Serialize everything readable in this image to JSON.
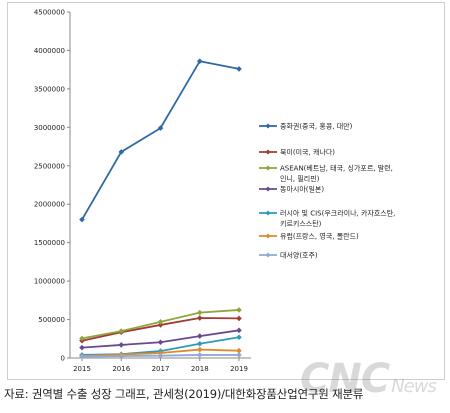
{
  "chart_data": {
    "type": "line",
    "x": [
      "2015",
      "2016",
      "2017",
      "2018",
      "2019"
    ],
    "ylim": [
      0,
      4500000
    ],
    "yticks": [
      "0",
      "500000",
      "1000000",
      "1500000",
      "2000000",
      "2500000",
      "3000000",
      "3500000",
      "4000000",
      "4500000"
    ],
    "series": [
      {
        "name": "중화권(중국, 홍콩, 대만)",
        "color": "#2e6aa6",
        "values": [
          1800000,
          2680000,
          2990000,
          3860000,
          3760000
        ]
      },
      {
        "name": "북미(미국, 캐나다)",
        "color": "#a23b34",
        "values": [
          225000,
          335000,
          430000,
          520000,
          515000
        ]
      },
      {
        "name": "ASEAN(베트남, 태국, 싱가포르, 말련,",
        "name_line2": "인니, 필리핀)",
        "color": "#8ea63c",
        "values": [
          255000,
          350000,
          470000,
          590000,
          625000
        ]
      },
      {
        "name": "동아시아(일본)",
        "color": "#6a4a8c",
        "values": [
          135000,
          170000,
          205000,
          285000,
          360000
        ]
      },
      {
        "name": "러시아 및 CIS(우크라이나, 카자흐스탄,",
        "name_line2": "키르키스스탄)",
        "color": "#2e9bb8",
        "values": [
          40000,
          50000,
          90000,
          185000,
          270000
        ]
      },
      {
        "name": "유럽(프랑스, 영국, 폴란드)",
        "color": "#e08a2c",
        "values": [
          25000,
          45000,
          65000,
          110000,
          95000
        ]
      },
      {
        "name": "대서양(호주)",
        "color": "#8fa9d8",
        "values": [
          20000,
          25000,
          30000,
          40000,
          40000
        ]
      }
    ]
  },
  "caption": "자료: 권역별 수출 성장 그래프, 관세청(2019)/대한화장품산업연구원 재분류",
  "watermark": {
    "main": "CNC",
    "sub": "News"
  }
}
